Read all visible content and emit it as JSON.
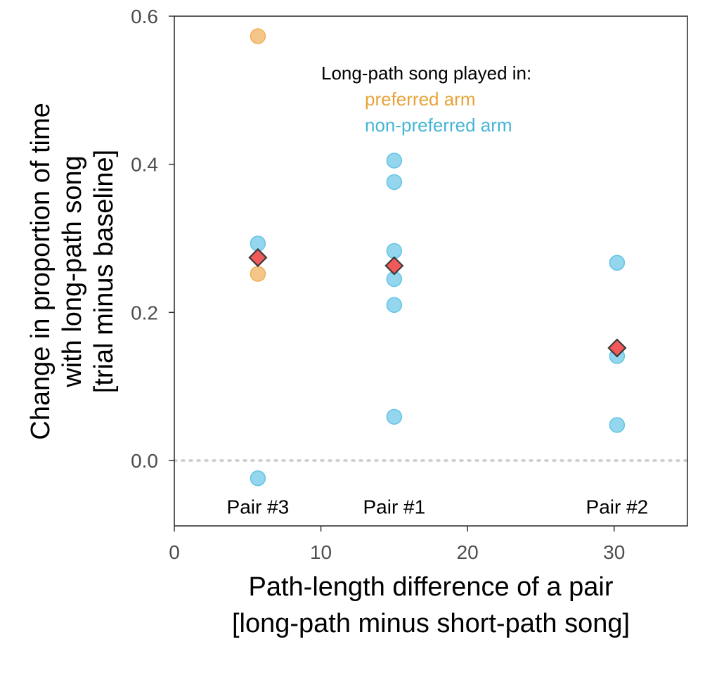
{
  "chart_data": {
    "type": "scatter",
    "title": "",
    "xlabel_lines": [
      "Path-length difference of a pair",
      "[long-path minus short-path song]"
    ],
    "ylabel_lines": [
      "Change in proportion of time",
      "with long-path song",
      "[trial minus baseline]"
    ],
    "xlim": [
      0,
      35
    ],
    "ylim": [
      -0.09,
      0.6
    ],
    "xticks": [
      0,
      10,
      20,
      30
    ],
    "xtick_labels": [
      "0",
      "10",
      "20",
      "30"
    ],
    "yticks": [
      0.0,
      0.2,
      0.4,
      0.6
    ],
    "ytick_labels": [
      "0.0",
      "0.2",
      "0.4",
      "0.6"
    ],
    "reference_line": {
      "y": 0.0,
      "style": "dotted",
      "color": "#cccccc"
    },
    "legend": {
      "title": "Long-path song played in:",
      "position": "top-right",
      "entries": [
        {
          "label": "preferred arm",
          "color": "#E8A33A"
        },
        {
          "label": "non-preferred arm",
          "color": "#45B5D6"
        }
      ]
    },
    "series": [
      {
        "name": "preferred arm",
        "color": "#F0A84A",
        "points": [
          {
            "x": 5.7,
            "y": 0.573
          },
          {
            "x": 5.7,
            "y": 0.252
          }
        ]
      },
      {
        "name": "non-preferred arm",
        "color": "#5BC0E3",
        "points": [
          {
            "x": 5.7,
            "y": 0.293
          },
          {
            "x": 5.7,
            "y": -0.024
          },
          {
            "x": 15.0,
            "y": 0.405
          },
          {
            "x": 15.0,
            "y": 0.376
          },
          {
            "x": 15.0,
            "y": 0.283
          },
          {
            "x": 15.0,
            "y": 0.245
          },
          {
            "x": 15.0,
            "y": 0.21
          },
          {
            "x": 15.0,
            "y": 0.059
          },
          {
            "x": 30.2,
            "y": 0.267
          },
          {
            "x": 30.2,
            "y": 0.141
          },
          {
            "x": 30.2,
            "y": 0.048
          }
        ]
      },
      {
        "name": "mean",
        "marker": "diamond",
        "color": "#F25A5A",
        "points": [
          {
            "x": 5.7,
            "y": 0.274
          },
          {
            "x": 15.0,
            "y": 0.263
          },
          {
            "x": 30.2,
            "y": 0.152
          }
        ]
      }
    ],
    "annotations": [
      {
        "text": "Pair #3",
        "x": 5.7,
        "y": -0.062
      },
      {
        "text": "Pair #1",
        "x": 15.0,
        "y": -0.062
      },
      {
        "text": "Pair #2",
        "x": 30.2,
        "y": -0.062
      }
    ]
  }
}
